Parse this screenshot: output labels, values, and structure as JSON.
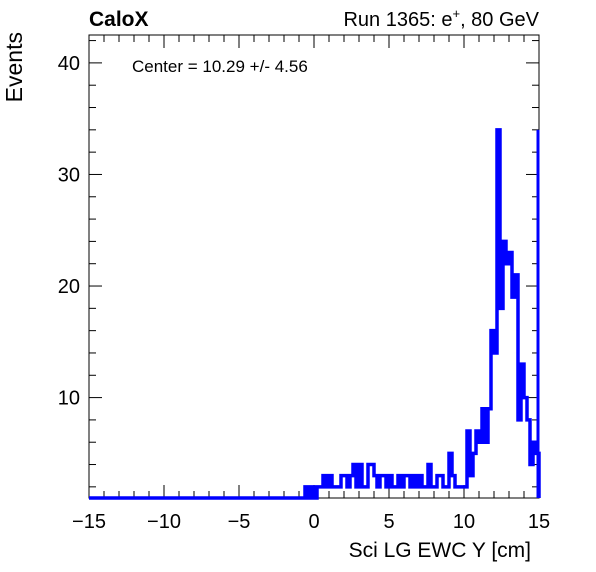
{
  "header": {
    "experiment": "CaloX",
    "run_prefix": "Run 1365: e",
    "run_sup": "+",
    "run_suffix": ", 80 GeV"
  },
  "annotation": "Center = 10.29 +/- 4.56",
  "chart_data": {
    "type": "line",
    "style": "step histogram",
    "xlabel": "Sci LG EWC Y [cm]",
    "ylabel": "Events",
    "xlim": [
      -15,
      15
    ],
    "ylim": [
      1,
      42.5
    ],
    "xticks": [
      -15,
      -10,
      -5,
      0,
      5,
      10,
      15
    ],
    "xtick_labels": [
      "−15",
      "−10",
      "−5",
      "0",
      "5",
      "10",
      "15"
    ],
    "yticks": [
      10,
      20,
      30,
      40
    ],
    "ytick_labels": [
      "10",
      "20",
      "30",
      "40"
    ],
    "grid": false,
    "line_color": "#0000ff",
    "bin_width": 0.2,
    "series": [
      {
        "x": [
          -0.6,
          -0.4,
          -0.2,
          0,
          0.2,
          0.4,
          0.6,
          0.8,
          1,
          1.2,
          1.4,
          1.6,
          1.8,
          2,
          2.2,
          2.4,
          2.6,
          2.8,
          3,
          3.2,
          3.4,
          3.6,
          3.8,
          4,
          4.2,
          4.4,
          4.6,
          4.8,
          5,
          5.2,
          5.4,
          5.6,
          5.8,
          6,
          6.2,
          6.4,
          6.6,
          6.8,
          7,
          7.2,
          7.4,
          7.6,
          7.8,
          8,
          8.2,
          8.4,
          8.6,
          8.8,
          9,
          9.2,
          9.4,
          9.6,
          9.8,
          10,
          10.2,
          10.4,
          10.6,
          10.8,
          11,
          11.2,
          11.4,
          11.6,
          11.8,
          12,
          12.2,
          12.4,
          12.6,
          12.8,
          13,
          13.2,
          13.4,
          13.6,
          13.8,
          14,
          14.2,
          14.4,
          14.6,
          14.8
        ],
        "y": [
          2,
          1,
          2,
          1,
          2,
          2,
          3,
          2,
          3,
          2,
          2,
          2,
          3,
          3,
          2,
          3,
          4,
          2,
          4,
          2,
          2,
          4,
          4,
          3,
          2,
          3,
          3,
          2,
          3,
          2,
          2,
          3,
          2,
          3,
          3,
          2,
          3,
          2,
          3,
          2,
          2,
          4,
          2,
          2,
          3,
          3,
          2,
          2,
          5,
          3,
          2,
          2,
          2,
          2,
          7,
          3,
          5,
          7,
          6,
          9,
          6,
          9,
          16,
          14,
          34,
          18,
          24,
          22,
          23,
          19,
          21,
          8,
          13,
          10,
          8,
          4,
          6,
          5
        ]
      }
    ],
    "overflow_right": 34
  }
}
